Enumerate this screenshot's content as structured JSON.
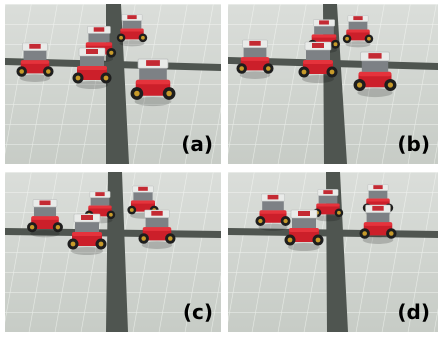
{
  "panels": [
    {
      "id": "a",
      "label": "(a)"
    },
    {
      "id": "b",
      "label": "(b)"
    },
    {
      "id": "c",
      "label": "(c)"
    },
    {
      "id": "d",
      "label": "(d)"
    }
  ],
  "colors": {
    "floor": "#c7ccc6",
    "tile_line": "#e7ebe6",
    "tape": "#4f5550",
    "robot_body": "#cc1f2a",
    "robot_top": "#e9ebe9",
    "marker": "#c42a33",
    "wheel": "#1e1e1e",
    "hub": "#c79a2a"
  }
}
